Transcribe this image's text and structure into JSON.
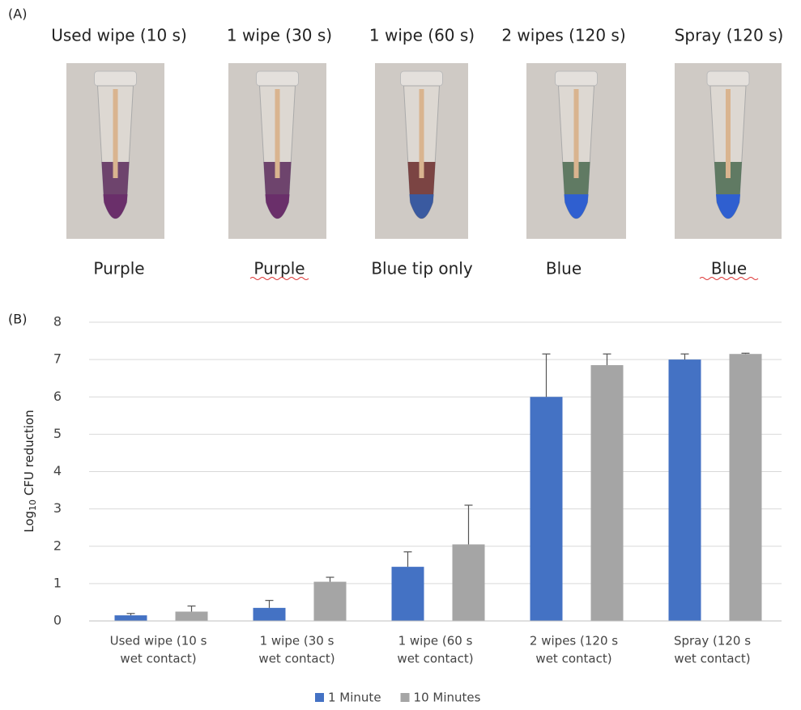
{
  "panel_a": {
    "label": "(A)",
    "titles": [
      "Used wipe (10 s)",
      "1 wipe (30 s)",
      "1 wipe (60 s)",
      "2 wipes (120 s)",
      "Spray (120 s)"
    ],
    "results": [
      "Purple",
      "Purple",
      "Blue tip only",
      "Blue",
      "Blue"
    ]
  },
  "chart_data": {
    "type": "bar",
    "panel_label": "(B)",
    "ylabel": [
      "Log",
      "10",
      " CFU reduction"
    ],
    "categories": [
      [
        "Used wipe (10 s",
        "wet contact)"
      ],
      [
        "1 wipe (30 s",
        "wet contact)"
      ],
      [
        "1 wipe (60 s",
        "wet contact)"
      ],
      [
        "2 wipes (120 s",
        "wet contact)"
      ],
      [
        "Spray (120 s",
        "wet contact)"
      ]
    ],
    "series": [
      {
        "name": "1 Minute",
        "color": "#4472c4",
        "values": [
          0.15,
          0.35,
          1.45,
          6.0,
          7.0
        ],
        "errors": [
          0.05,
          0.2,
          0.4,
          1.15,
          0.15
        ]
      },
      {
        "name": "10 Minutes",
        "color": "#a5a5a5",
        "values": [
          0.25,
          1.05,
          2.05,
          6.85,
          7.15
        ],
        "errors": [
          0.15,
          0.12,
          1.05,
          0.3,
          0.02
        ]
      }
    ],
    "ylim": [
      0,
      8
    ],
    "yticks": [
      0,
      1,
      2,
      3,
      4,
      5,
      6,
      7,
      8
    ],
    "grid": true,
    "legend": "bottom"
  }
}
